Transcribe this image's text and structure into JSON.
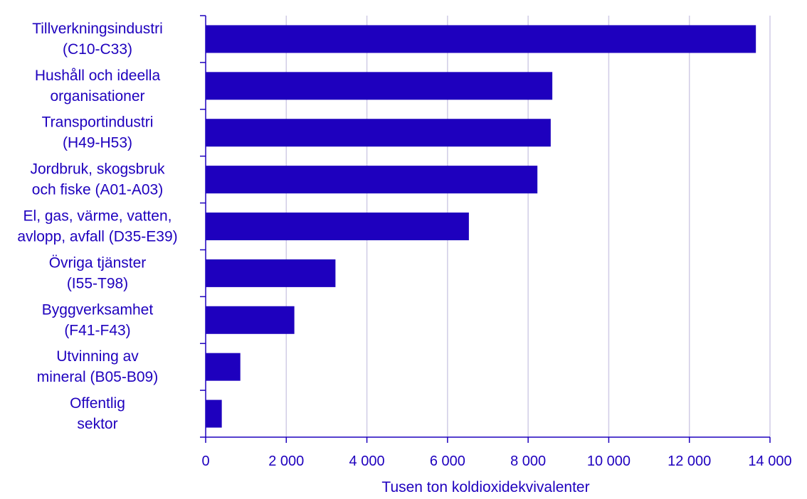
{
  "chart_data": {
    "type": "bar",
    "orientation": "horizontal",
    "title": "",
    "categories": [
      [
        "Tillverkningsindustri",
        "(C10-C33)"
      ],
      [
        "Hushåll och ideella",
        "organisationer"
      ],
      [
        "Transportindustri",
        "(H49-H53)"
      ],
      [
        "Jordbruk, skogsbruk",
        "och fiske (A01-A03)"
      ],
      [
        "El, gas, värme, vatten,",
        "avlopp, avfall (D35-E39)"
      ],
      [
        "Övriga tjänster",
        "(I55-T98)"
      ],
      [
        "Byggverksamhet",
        "(F41-F43)"
      ],
      [
        "Utvinning av",
        "mineral (B05-B09)"
      ],
      [
        "Offentlig",
        "sektor"
      ]
    ],
    "values": [
      13650,
      8600,
      8560,
      8230,
      6530,
      3220,
      2200,
      860,
      400
    ],
    "xlabel": "Tusen ton koldioxidekvivalenter",
    "ylabel": "",
    "xlim": [
      0,
      14000
    ],
    "xticks": [
      0,
      2000,
      4000,
      6000,
      8000,
      10000,
      12000,
      14000
    ],
    "xtick_labels": [
      "0",
      "2 000",
      "4 000",
      "6 000",
      "8 000",
      "10 000",
      "12 000",
      "14 000"
    ],
    "grid": true,
    "colors": {
      "bar": "#1e00be",
      "grid": "#d0cce6",
      "axis": "#1e00be",
      "text": "#1e00be"
    }
  }
}
